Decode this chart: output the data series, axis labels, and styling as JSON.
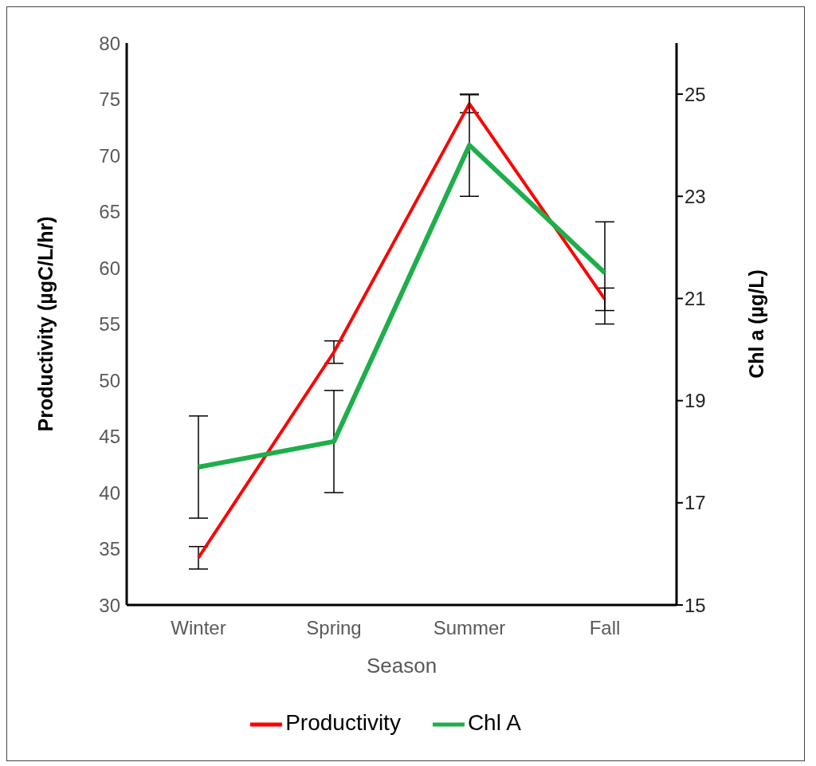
{
  "chart_data": {
    "type": "line",
    "xlabel": "Season",
    "ylabel": "Productivity (µgC/L/hr)",
    "y2label": "Chl a (µg/L)",
    "categories": [
      "Winter",
      "Spring",
      "Summer",
      "Fall"
    ],
    "series": [
      {
        "name": "Productivity",
        "color": "#ff0000",
        "values": [
          34.2,
          52.5,
          74.6,
          57.2
        ],
        "errors": [
          1,
          1,
          0.8,
          1
        ]
      },
      {
        "name": "Chl A",
        "color": "#1fae4b",
        "axis": "y2",
        "values": [
          17.7,
          18.2,
          24.0,
          21.5
        ],
        "errors": [
          1,
          1,
          1,
          1
        ]
      }
    ],
    "ylim": [
      30,
      80
    ],
    "yticks": [
      30,
      35,
      40,
      45,
      50,
      55,
      60,
      65,
      70,
      75,
      80
    ],
    "y2lim": [
      15,
      26
    ],
    "y2ticks": [
      15,
      17,
      19,
      21,
      23,
      25
    ],
    "grid": false,
    "legend": "bottom",
    "marker": "none",
    "line_style": "solid"
  }
}
